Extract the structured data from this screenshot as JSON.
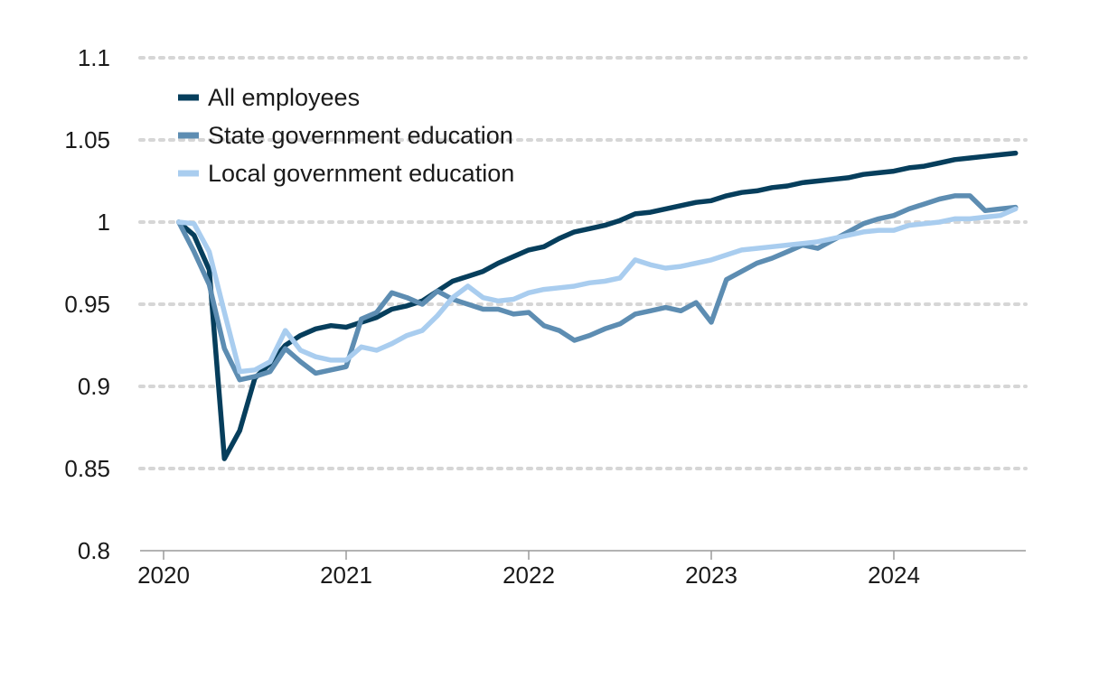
{
  "chart_data": {
    "type": "line",
    "title": "",
    "xlabel": "",
    "ylabel": "",
    "ylim": [
      0.8,
      1.1
    ],
    "y_ticks": [
      "0.8",
      "0.85",
      "0.9",
      "0.95",
      "1",
      "1.05",
      "1.1"
    ],
    "x_ticks": [
      "2020",
      "2021",
      "2022",
      "2023",
      "2024"
    ],
    "grid": "horizontal dotted",
    "legend_position": "top-left",
    "x_start": "2020-02",
    "series": [
      {
        "name": "All employees",
        "color": "#063e5c",
        "values": [
          1.0,
          0.992,
          0.971,
          0.856,
          0.873,
          0.905,
          0.914,
          0.925,
          0.931,
          0.935,
          0.937,
          0.936,
          0.939,
          0.942,
          0.947,
          0.949,
          0.952,
          0.958,
          0.964,
          0.967,
          0.97,
          0.975,
          0.979,
          0.983,
          0.985,
          0.99,
          0.994,
          0.996,
          0.998,
          1.001,
          1.005,
          1.006,
          1.008,
          1.01,
          1.012,
          1.013,
          1.016,
          1.018,
          1.019,
          1.021,
          1.022,
          1.024,
          1.025,
          1.026,
          1.027,
          1.029,
          1.03,
          1.031,
          1.033,
          1.034,
          1.036,
          1.038,
          1.039,
          1.04,
          1.041,
          1.042
        ]
      },
      {
        "name": "State government education",
        "color": "#5d8db2",
        "values": [
          1.0,
          0.982,
          0.962,
          0.923,
          0.904,
          0.906,
          0.909,
          0.923,
          0.915,
          0.908,
          0.91,
          0.912,
          0.941,
          0.945,
          0.957,
          0.954,
          0.95,
          0.958,
          0.953,
          0.95,
          0.947,
          0.947,
          0.944,
          0.945,
          0.937,
          0.934,
          0.928,
          0.931,
          0.935,
          0.938,
          0.944,
          0.946,
          0.948,
          0.946,
          0.951,
          0.939,
          0.965,
          0.97,
          0.975,
          0.978,
          0.982,
          0.986,
          0.984,
          0.989,
          0.994,
          0.999,
          1.002,
          1.004,
          1.008,
          1.011,
          1.014,
          1.016,
          1.016,
          1.007,
          1.008,
          1.009
        ]
      },
      {
        "name": "Local government education",
        "color": "#a9cdef",
        "values": [
          1.0,
          0.999,
          0.982,
          0.945,
          0.909,
          0.91,
          0.915,
          0.934,
          0.922,
          0.918,
          0.916,
          0.916,
          0.924,
          0.922,
          0.926,
          0.931,
          0.934,
          0.943,
          0.954,
          0.961,
          0.954,
          0.952,
          0.953,
          0.957,
          0.959,
          0.96,
          0.961,
          0.963,
          0.964,
          0.966,
          0.977,
          0.974,
          0.972,
          0.973,
          0.975,
          0.977,
          0.98,
          0.983,
          0.984,
          0.985,
          0.986,
          0.987,
          0.988,
          0.99,
          0.992,
          0.994,
          0.995,
          0.995,
          0.998,
          0.999,
          1.0,
          1.002,
          1.002,
          1.003,
          1.004,
          1.008
        ]
      }
    ]
  }
}
